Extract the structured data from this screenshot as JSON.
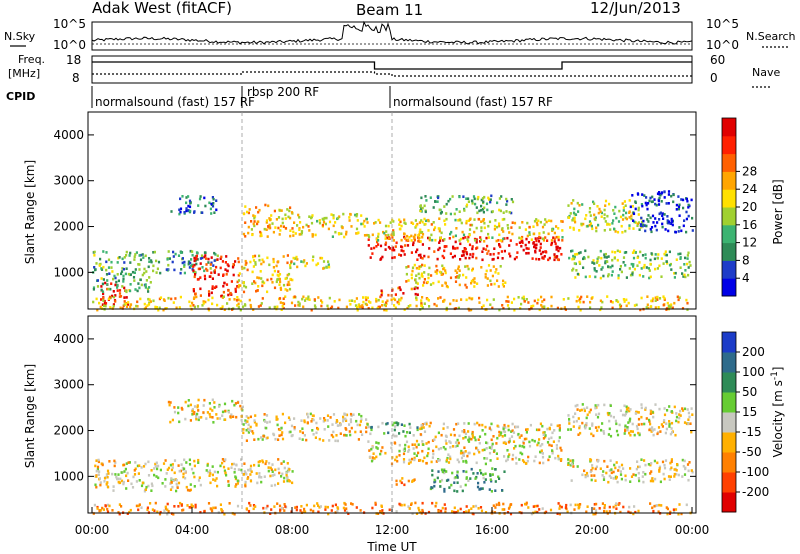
{
  "header": {
    "radar": "Adak West (fitACF)",
    "beam": "Beam 11",
    "date": "12/Jun/2013"
  },
  "top_panels": {
    "nsky_label": "N.Sky",
    "nsky_ticks": [
      "10^5",
      "10^0"
    ],
    "nsearch_label": "N.Search",
    "freq_label_1": "Freq.",
    "freq_label_2": "[MHz]",
    "freq_ticks": [
      "18",
      "8"
    ],
    "nave_label": "Nave",
    "nave_ticks": [
      "60",
      "0"
    ],
    "cpid_label": "CPID",
    "cpid_segments": [
      {
        "text": "normalsound (fast) 157 RF"
      },
      {
        "text": "rbsp 200 RF"
      },
      {
        "text": "normalsound (fast) 157 RF"
      }
    ]
  },
  "chart_data": [
    {
      "type": "heatmap",
      "quantity": "Power",
      "ylabel": "Slant Range [km]",
      "ylim": [
        200,
        4500
      ],
      "yticks": [
        1000,
        2000,
        3000,
        4000
      ],
      "colorbar_label": "Power [dB]",
      "colorbar_ticks": [
        "4",
        "8",
        "12",
        "16",
        "20",
        "24",
        "28"
      ],
      "colorbar_colors": [
        "#0000e6",
        "#1e3cc8",
        "#2e8b57",
        "#3cb371",
        "#a0d030",
        "#ffe000",
        "#ffa500",
        "#ff6000",
        "#ff2000",
        "#e00000"
      ],
      "structures": [
        {
          "t0": 0.3,
          "t1": 1.5,
          "r0": 300,
          "r1": 800,
          "level": 0.95
        },
        {
          "t0": 0.0,
          "t1": 2.5,
          "r0": 600,
          "r1": 1500,
          "level": 0.35
        },
        {
          "t0": 2.5,
          "t1": 5.0,
          "r0": 1000,
          "r1": 1500,
          "level": 0.3
        },
        {
          "t0": 3.0,
          "t1": 5.0,
          "r0": 2300,
          "r1": 2700,
          "level": 0.2
        },
        {
          "t0": 4.0,
          "t1": 5.8,
          "r0": 500,
          "r1": 1400,
          "level": 0.9
        },
        {
          "t0": 5.8,
          "t1": 8.0,
          "r0": 600,
          "r1": 1400,
          "level": 0.6
        },
        {
          "t0": 6.0,
          "t1": 8.0,
          "r0": 1800,
          "r1": 2500,
          "level": 0.6
        },
        {
          "t0": 8.0,
          "t1": 11.0,
          "r0": 1800,
          "r1": 2300,
          "level": 0.55
        },
        {
          "t0": 8.0,
          "t1": 9.5,
          "r0": 1100,
          "r1": 1400,
          "level": 0.5
        },
        {
          "t0": 11.0,
          "t1": 18.8,
          "r0": 1300,
          "r1": 1800,
          "level": 0.92
        },
        {
          "t0": 11.0,
          "t1": 18.8,
          "r0": 1700,
          "r1": 2200,
          "level": 0.55
        },
        {
          "t0": 12.5,
          "t1": 16.5,
          "r0": 700,
          "r1": 1200,
          "level": 0.6
        },
        {
          "t0": 11.5,
          "t1": 13.0,
          "r0": 500,
          "r1": 700,
          "level": 0.85
        },
        {
          "t0": 13.0,
          "t1": 17.0,
          "r0": 2300,
          "r1": 2700,
          "level": 0.35
        },
        {
          "t0": 19.0,
          "t1": 22.0,
          "r0": 1900,
          "r1": 2600,
          "level": 0.5
        },
        {
          "t0": 19.0,
          "t1": 24.0,
          "r0": 900,
          "r1": 1500,
          "level": 0.4
        },
        {
          "t0": 21.5,
          "t1": 24.0,
          "r0": 1900,
          "r1": 2800,
          "level": 0.12
        },
        {
          "t0": 0.0,
          "t1": 24.0,
          "r0": 200,
          "r1": 500,
          "level": 0.6
        }
      ]
    },
    {
      "type": "heatmap",
      "quantity": "Velocity",
      "ylabel": "Slant Range [km]",
      "xlabel": "Time UT",
      "ylim": [
        200,
        4500
      ],
      "yticks": [
        1000,
        2000,
        3000,
        4000
      ],
      "xticks": [
        "00:00",
        "04:00",
        "08:00",
        "12:00",
        "16:00",
        "20:00",
        "00:00"
      ],
      "xrange_hours": [
        0,
        24
      ],
      "colorbar_label": "Velocity [m s^-1]",
      "colorbar_ticks": [
        "200",
        "100",
        "50",
        "15",
        "-15",
        "-50",
        "-100",
        "-200"
      ],
      "colorbar_colors": [
        "#1c3cc8",
        "#2e6b8b",
        "#2e8b57",
        "#66cc33",
        "#c8c8c0",
        "#ffb000",
        "#ff8000",
        "#ff4000",
        "#e00000"
      ],
      "structures": [
        {
          "t0": 0.0,
          "t1": 4.0,
          "r0": 700,
          "r1": 1400,
          "level": 0.55
        },
        {
          "t0": 4.0,
          "t1": 8.0,
          "r0": 800,
          "r1": 1400,
          "level": 0.55
        },
        {
          "t0": 6.0,
          "t1": 11.0,
          "r0": 1800,
          "r1": 2400,
          "level": 0.55
        },
        {
          "t0": 3.0,
          "t1": 6.0,
          "r0": 2200,
          "r1": 2700,
          "level": 0.55
        },
        {
          "t0": 11.0,
          "t1": 18.8,
          "r0": 1300,
          "r1": 1800,
          "level": 0.55
        },
        {
          "t0": 11.0,
          "t1": 13.0,
          "r0": 1900,
          "r1": 2200,
          "level": 0.35
        },
        {
          "t0": 13.5,
          "t1": 16.5,
          "r0": 700,
          "r1": 1200,
          "level": 0.3
        },
        {
          "t0": 12.0,
          "t1": 13.0,
          "r0": 800,
          "r1": 1000,
          "level": 0.68
        },
        {
          "t0": 13.0,
          "t1": 18.8,
          "r0": 1800,
          "r1": 2200,
          "level": 0.55
        },
        {
          "t0": 19.0,
          "t1": 24.0,
          "r0": 1900,
          "r1": 2600,
          "level": 0.55
        },
        {
          "t0": 19.0,
          "t1": 24.0,
          "r0": 900,
          "r1": 1400,
          "level": 0.55
        },
        {
          "t0": 0.0,
          "t1": 24.0,
          "r0": 200,
          "r1": 450,
          "level": 0.7
        }
      ]
    }
  ]
}
